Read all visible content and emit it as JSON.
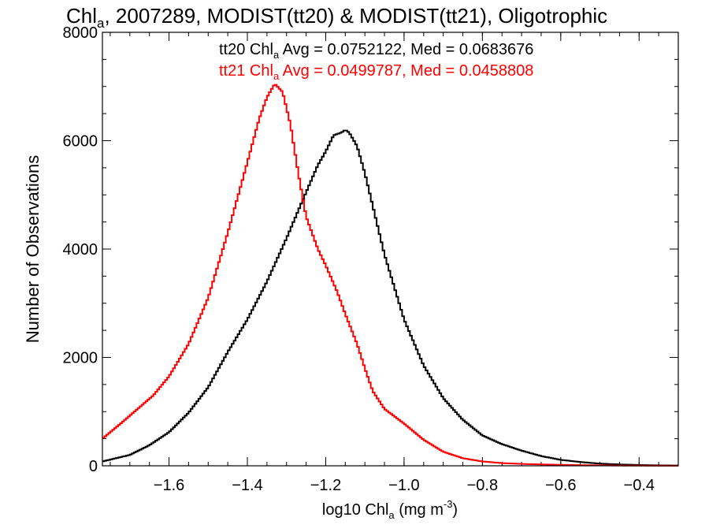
{
  "chart_data": {
    "type": "line",
    "title": {
      "prefix": "Chl",
      "sub": "a",
      "rest": ", 2007289, MODIST(tt20) & MODIST(tt21), Oligotrophic"
    },
    "xlabel": {
      "prefix": "log10 Chl",
      "sub": "a",
      "unit": " (mg m",
      "sup": "-3",
      "close": ")"
    },
    "ylabel": "Number of Observations",
    "xlim": [
      -1.77,
      -0.3
    ],
    "ylim": [
      0,
      8000
    ],
    "x_ticks": [
      -1.6,
      -1.4,
      -1.2,
      -1.0,
      -0.8,
      -0.6,
      -0.4
    ],
    "x_tick_labels": [
      "−1.6",
      "−1.4",
      "−1.2",
      "−1.0",
      "−0.8",
      "−0.6",
      "−0.4"
    ],
    "y_ticks": [
      0,
      2000,
      4000,
      6000,
      8000
    ],
    "y_tick_labels": [
      "0",
      "2000",
      "4000",
      "6000",
      "8000"
    ],
    "step": "histogram",
    "series": [
      {
        "name": "tt20",
        "color": "#000000",
        "x": [
          -1.77,
          -1.7,
          -1.65,
          -1.6,
          -1.55,
          -1.5,
          -1.45,
          -1.4,
          -1.35,
          -1.3,
          -1.25,
          -1.22,
          -1.2,
          -1.18,
          -1.16,
          -1.15,
          -1.14,
          -1.12,
          -1.1,
          -1.08,
          -1.05,
          -1.0,
          -0.95,
          -0.9,
          -0.85,
          -0.8,
          -0.75,
          -0.7,
          -0.65,
          -0.6,
          -0.55,
          -0.5,
          -0.45,
          -0.4,
          -0.35,
          -0.3
        ],
        "y": [
          80,
          200,
          380,
          620,
          980,
          1450,
          2100,
          2700,
          3400,
          4200,
          5050,
          5550,
          5800,
          6100,
          6150,
          6200,
          6150,
          5900,
          5400,
          4800,
          3900,
          2700,
          1850,
          1250,
          850,
          560,
          400,
          280,
          180,
          110,
          70,
          40,
          25,
          15,
          8,
          5
        ]
      },
      {
        "name": "tt21",
        "color": "#ff0000",
        "x": [
          -1.77,
          -1.72,
          -1.68,
          -1.64,
          -1.6,
          -1.55,
          -1.5,
          -1.45,
          -1.4,
          -1.37,
          -1.35,
          -1.33,
          -1.31,
          -1.29,
          -1.27,
          -1.25,
          -1.22,
          -1.2,
          -1.17,
          -1.15,
          -1.12,
          -1.1,
          -1.08,
          -1.05,
          -1.0,
          -0.95,
          -0.9,
          -0.85,
          -0.8,
          -0.75,
          -0.7,
          -0.65,
          -0.6,
          -0.55,
          -0.5,
          -0.45,
          -0.4,
          -0.35,
          -0.3
        ],
        "y": [
          500,
          800,
          1050,
          1300,
          1650,
          2250,
          3100,
          4300,
          5600,
          6400,
          6800,
          7050,
          6900,
          6300,
          5400,
          4600,
          4000,
          3700,
          3200,
          2800,
          2250,
          1800,
          1380,
          1050,
          780,
          480,
          260,
          140,
          80,
          50,
          35,
          25,
          18,
          12,
          8,
          5,
          3,
          2,
          1
        ]
      }
    ],
    "annotations": [
      {
        "label": "tt20 Chl",
        "sub": "a",
        "stats": " Avg = 0.0752122, Med = 0.0683676",
        "color": "#000000"
      },
      {
        "label": "tt21 Chl",
        "sub": "a",
        "stats": " Avg = 0.0499787, Med = 0.0458808",
        "color": "#ff0000"
      }
    ],
    "grid": false,
    "legend": "none"
  }
}
